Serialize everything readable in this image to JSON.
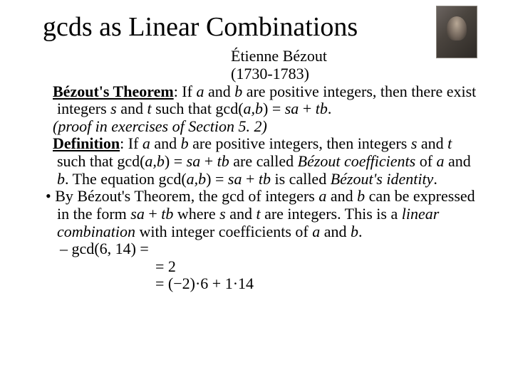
{
  "title": "gcds as Linear Combinations",
  "attribution": {
    "name": "Étienne Bézout",
    "dates": "(1730-1783)"
  },
  "theorem": {
    "label": "Bézout's Theorem",
    "text_prefix": ": If ",
    "a": "a",
    "and1": " and ",
    "b": "b",
    "text_mid1": " are positive integers, then there exist integers ",
    "s": "s",
    "and2": " and ",
    "t": "t",
    "text_mid2": " such that  gcd(",
    "ab": "a,b",
    "text_eq": ") = ",
    "sa": "sa",
    "plus": " + ",
    "tb": "tb",
    "period": "."
  },
  "proof_note": "(proof  in exercises of Section 5. 2)",
  "definition": {
    "label": "Definition",
    "text_prefix": ": If ",
    "a": "a",
    "and1": " and ",
    "b": "b",
    "text_mid1": " are positive integers, then integers ",
    "s": "s",
    "and2": " and ",
    "t": "t",
    "text_mid2": " such that  gcd(",
    "ab": "a,b",
    "text_eq": ") = ",
    "sa": "sa",
    "plus": " + ",
    "tb": "tb",
    "are_called": " are called ",
    "bezout_coeff": "Bézout coefficients",
    "of": " of ",
    "a2": "a",
    "and3": " and ",
    "b2": "b",
    "period1": ". The equation  gcd(",
    "ab2": "a,b",
    "text_eq2": ") = ",
    "sa2": "sa",
    "plus2": " + ",
    "tb2": "tb",
    "is_called": " is called ",
    "bezout_identity": "Bézout's identity",
    "period2": "."
  },
  "bullet1": {
    "p1": "By Bézout's Theorem,  the gcd of integers ",
    "a": "a",
    "and1": " and ",
    "b": "b",
    "p2": " can be expressed in the form  ",
    "sa": "sa",
    "plus": " + ",
    "tb": "tb",
    "p3": " where ",
    "s": "s",
    "and2": " and ",
    "t": "t",
    "p4": " are integers. This is a ",
    "lincomb": "linear combination",
    "p5": " with integer coefficients of ",
    "a2": "a",
    "and3": " and ",
    "b2": "b",
    "period": "."
  },
  "example": {
    "line1": "gcd(6, 14)  =",
    "line2": "=  2",
    "line3": "= (−2)·6 + 1·14"
  },
  "colors": {
    "text": "#000000",
    "background": "#ffffff"
  },
  "fonts": {
    "title_size_pt": 38,
    "body_size_pt": 22
  }
}
